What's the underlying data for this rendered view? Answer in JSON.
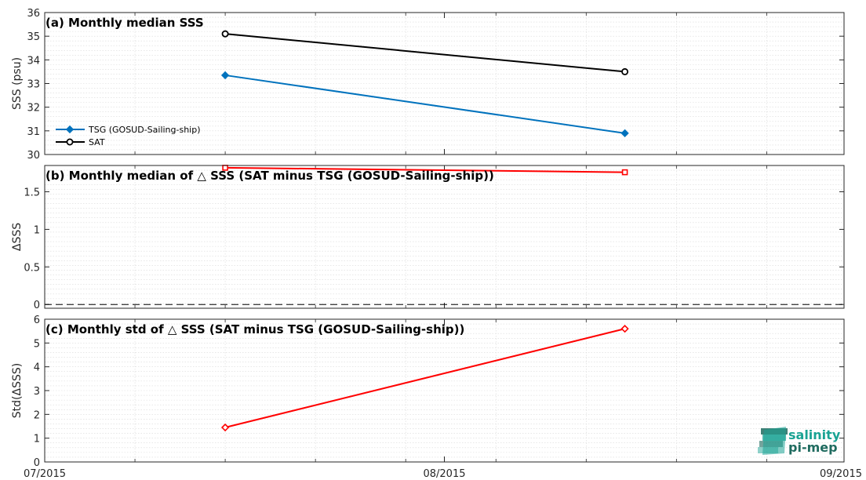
{
  "chart_data": [
    {
      "type": "line",
      "title": "(a) Monthly median SSS",
      "ylabel": "SSS (psu)",
      "ylim": [
        30,
        36
      ],
      "yticks": [
        "30",
        "31",
        "32",
        "33",
        "34",
        "35",
        "36"
      ],
      "grid": true,
      "legend_position": "left",
      "series": [
        {
          "name": "TSG (GOSUD-Sailing-ship)",
          "color": "#0072BD",
          "marker": "diamond-filled",
          "x": [
            "2015-07-15",
            "2015-08-15"
          ],
          "values": [
            33.35,
            30.9
          ]
        },
        {
          "name": "SAT",
          "color": "#000000",
          "marker": "circle-open",
          "x": [
            "2015-07-15",
            "2015-08-15"
          ],
          "values": [
            35.1,
            33.5
          ]
        }
      ]
    },
    {
      "type": "line",
      "title": "(b) Monthly median of △ SSS (SAT minus TSG (GOSUD-Sailing-ship))",
      "ylabel": "ΔSSS",
      "ylim": [
        -0.05,
        1.85
      ],
      "yticks": [
        "0",
        "0.5",
        "1",
        "1.5"
      ],
      "grid": true,
      "reference_line": 0,
      "series": [
        {
          "color": "#FF0000",
          "marker": "square-open",
          "x": [
            "2015-07-15",
            "2015-08-15"
          ],
          "values": [
            1.82,
            1.76
          ]
        }
      ]
    },
    {
      "type": "line",
      "title": "(c) Monthly std of △ SSS (SAT minus TSG (GOSUD-Sailing-ship))",
      "ylabel": "Std(ΔSSS)",
      "ylim": [
        0,
        6
      ],
      "yticks": [
        "0",
        "1",
        "2",
        "3",
        "4",
        "5",
        "6"
      ],
      "grid": true,
      "series": [
        {
          "color": "#FF0000",
          "marker": "diamond-open",
          "x": [
            "2015-07-15",
            "2015-08-15"
          ],
          "values": [
            1.45,
            5.6
          ]
        }
      ],
      "xticks": [
        "07/2015",
        "08/2015",
        "09/2015"
      ]
    }
  ],
  "x_axis": {
    "ticks": [
      {
        "date": "2015-07-01",
        "label": "07/2015"
      },
      {
        "date": "2015-08-01",
        "label": "08/2015"
      },
      {
        "date": "2015-09-01",
        "label": "09/2015"
      }
    ],
    "range": [
      "2015-07-01",
      "2015-09-01"
    ]
  },
  "logo": {
    "line1": "salinity",
    "line2": "pi-mep",
    "color": "#1aa394",
    "dark": "#1f6b5f"
  }
}
